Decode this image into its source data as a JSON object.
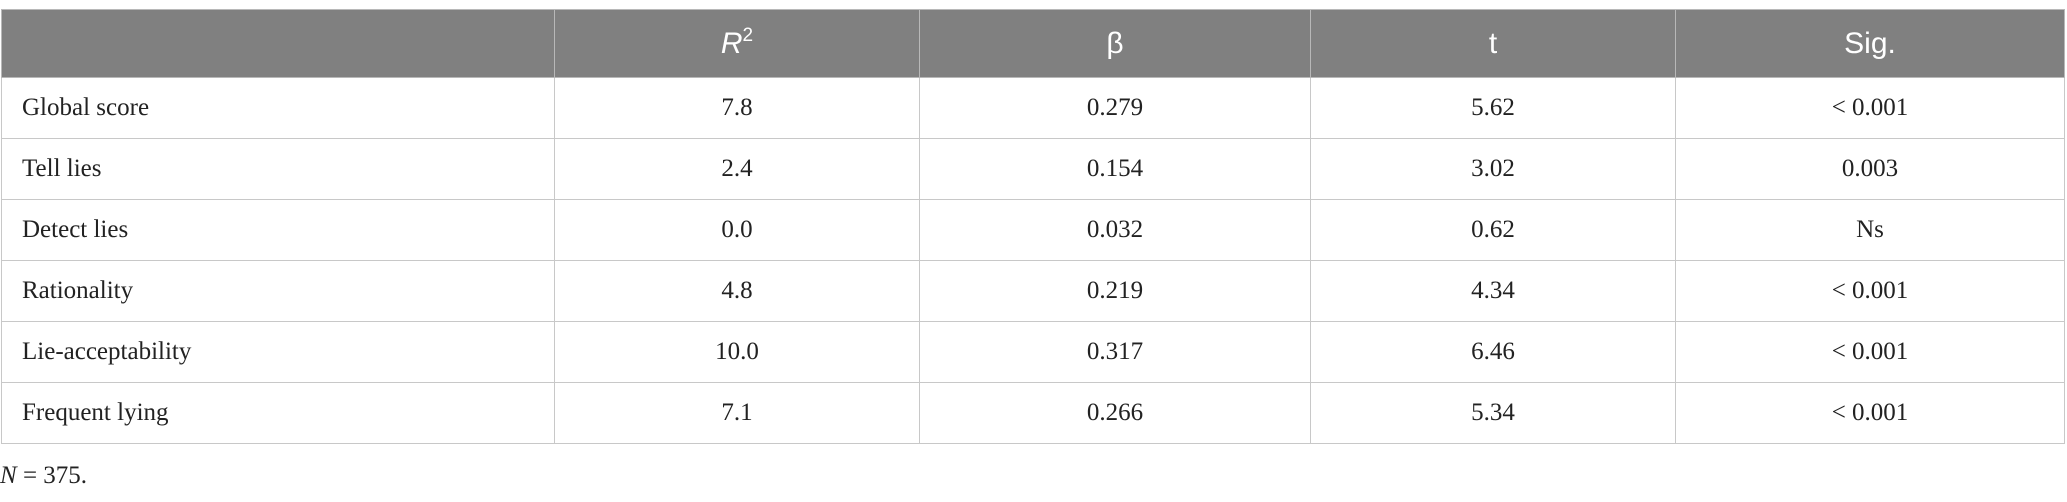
{
  "table": {
    "columns": [
      {
        "text": "R",
        "superscript": "2"
      },
      {
        "text": "β"
      },
      {
        "text": "t"
      },
      {
        "text": "Sig."
      }
    ],
    "rows": [
      [
        "Global score",
        "7.8",
        "0.279",
        "5.62",
        "< 0.001"
      ],
      [
        "Tell lies",
        "2.4",
        "0.154",
        "3.02",
        "0.003"
      ],
      [
        "Detect lies",
        "0.0",
        "0.032",
        "0.62",
        "Ns"
      ],
      [
        "Rationality",
        "4.8",
        "0.219",
        "4.34",
        "< 0.001"
      ],
      [
        "Lie-acceptability",
        "10.0",
        "0.317",
        "6.46",
        "< 0.001"
      ],
      [
        "Frequent lying",
        "7.1",
        "0.266",
        "5.34",
        "< 0.001"
      ]
    ]
  },
  "footnote": {
    "variable": "N",
    "text": " = 375."
  }
}
